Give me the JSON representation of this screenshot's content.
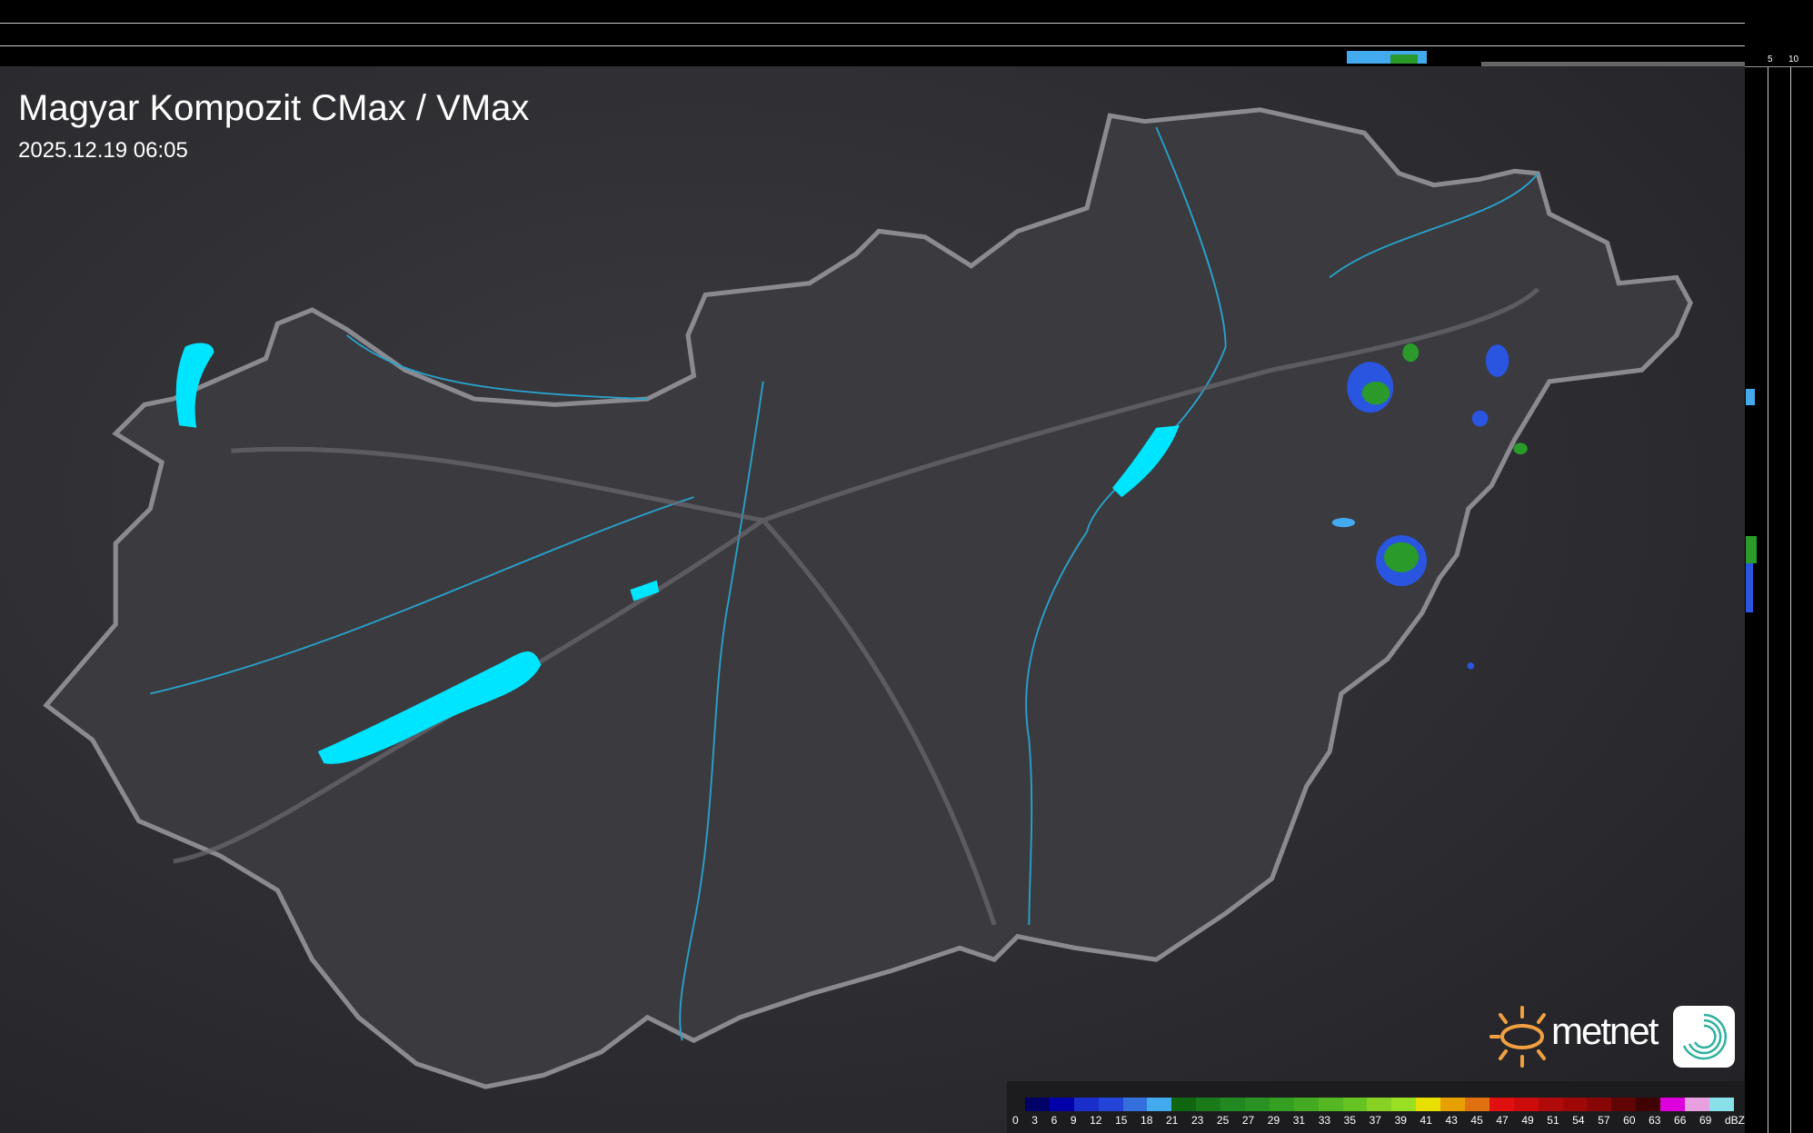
{
  "header": {
    "title": "Magyar Kompozit CMax / VMax",
    "timestamp": "2025.12.19 06:05"
  },
  "profile_axes": {
    "top_ticks": [
      "10",
      "5"
    ],
    "right_ticks": [
      "5",
      "10"
    ]
  },
  "legend": {
    "unit": "dBZ",
    "labels": [
      "0",
      "3",
      "6",
      "9",
      "12",
      "15",
      "18",
      "21",
      "23",
      "25",
      "27",
      "29",
      "31",
      "33",
      "35",
      "37",
      "39",
      "41",
      "43",
      "45",
      "47",
      "49",
      "51",
      "54",
      "57",
      "60",
      "63",
      "66",
      "69",
      "dBZ"
    ],
    "colors": [
      "#000066",
      "#0000aa",
      "#1a2ecc",
      "#2244d8",
      "#3370dd",
      "#44aaee",
      "#116611",
      "#1a7a1a",
      "#228822",
      "#2a9222",
      "#33a022",
      "#44aa22",
      "#55b822",
      "#66c422",
      "#88d022",
      "#99e022",
      "#e8e000",
      "#e8a000",
      "#e07010",
      "#e01010",
      "#cc0c0c",
      "#b00a0a",
      "#a00808",
      "#880606",
      "#600404",
      "#400202",
      "#dd00dd",
      "#e8a0e0",
      "#88e0e8"
    ]
  },
  "logo": {
    "text": "metnet"
  },
  "colors": {
    "lake": "#00e5ff",
    "river": "#2aa0c8",
    "border": "#8a8a90",
    "echo_blue": "#2a55e0",
    "echo_green": "#2a9a2a"
  }
}
